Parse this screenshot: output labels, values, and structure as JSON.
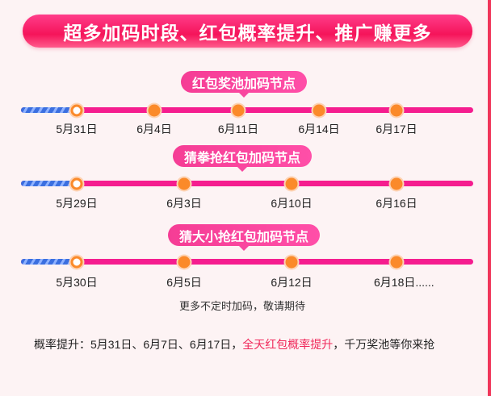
{
  "banner": "超多加码时段、红包概率提升、推广赚更多",
  "colors": {
    "accent": "#f51d8f",
    "node": "#fb8a2a",
    "passed": "#3b6fe0",
    "highlight": "#f0285a"
  },
  "timelines": [
    {
      "title": "红包奖池加码节点",
      "dates": [
        "5月31日",
        "6月4日",
        "6月11日",
        "6月14日",
        "6月17日"
      ]
    },
    {
      "title": "猜拳抢红包加码节点",
      "dates": [
        "5月29日",
        "6月3日",
        "6月10日",
        "6月16日"
      ]
    },
    {
      "title": "猜大小抢红包加码节点",
      "dates": [
        "5月30日",
        "6月5日",
        "6月12日",
        "6月18日......"
      ]
    }
  ],
  "note": "更多不定时加码，敬请期待",
  "para": {
    "prefix": "概率提升：5月31日、6月7日、6月17日，",
    "highlight": "全天红包概率提升",
    "suffix": "，千万奖池等你来抢"
  }
}
